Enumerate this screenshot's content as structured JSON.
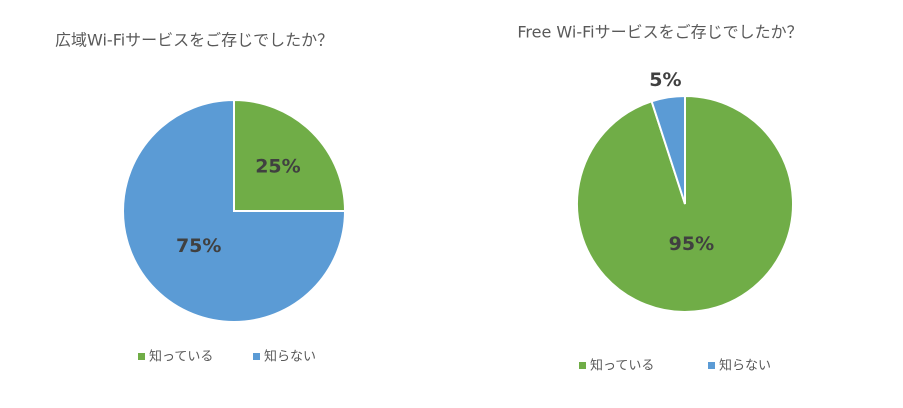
{
  "chart_data": [
    {
      "type": "pie",
      "title": "広域Wi-Fiサービスをご存じでしたか？",
      "categories": [
        "知っている",
        "知らない"
      ],
      "values": [
        25,
        75
      ],
      "value_labels": [
        "25%",
        "75%"
      ],
      "colors": [
        "#70ad47",
        "#5b9bd5"
      ],
      "legend": "bottom"
    },
    {
      "type": "pie",
      "title": "Free Wi-Fiサービスをご存じでしたか？",
      "categories": [
        "知っている",
        "知らない"
      ],
      "values": [
        95,
        5
      ],
      "value_labels": [
        "95%",
        "5%"
      ],
      "colors": [
        "#70ad47",
        "#5b9bd5"
      ],
      "legend": "bottom"
    }
  ]
}
